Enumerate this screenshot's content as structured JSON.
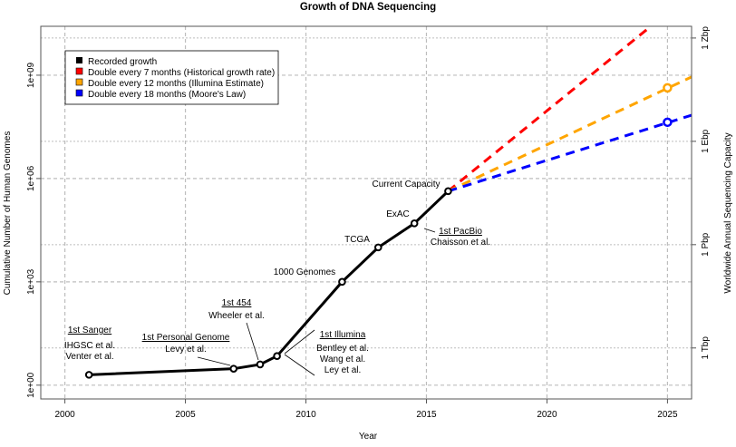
{
  "chart_data": {
    "type": "line",
    "title": "Growth of DNA Sequencing",
    "xlabel": "Year",
    "ylabel": "Cumulative Number of Human Genomes",
    "ylabel_right": "Worldwide Annual Sequencing Capacity",
    "xlim": [
      1999,
      2026
    ],
    "ylim_log10": [
      -0.4,
      10.42
    ],
    "yscale": "log",
    "grid": true,
    "x_ticks": [
      2000,
      2005,
      2010,
      2015,
      2020,
      2025
    ],
    "x_tick_labels": [
      "2000",
      "2005",
      "2010",
      "2015",
      "2020",
      "2025"
    ],
    "y_ticks": [
      1,
      1000,
      1000000,
      1000000000
    ],
    "y_tick_labels": [
      "1e+00",
      "1e+03",
      "1e+06",
      "1e+09"
    ],
    "y_right_ticks_log10": [
      1.08,
      4.08,
      7.08,
      10.08
    ],
    "y_right_tick_labels": [
      "1 Tbp",
      "1 Pbp",
      "1 Ebp",
      "1 Zbp"
    ],
    "legend_position": "top-left",
    "legend": [
      {
        "label": "Recorded growth",
        "color": "#000000"
      },
      {
        "label": "Double every 7 months (Historical growth rate)",
        "color": "#ff0000"
      },
      {
        "label": "Double every 12 months (Illumina Estimate)",
        "color": "#ffa500"
      },
      {
        "label": "Double every 18 months (Moore's Law)",
        "color": "#0000ff"
      }
    ],
    "series": [
      {
        "name": "Recorded growth",
        "color": "#000000",
        "x": [
          2001,
          2007,
          2008.1,
          2008.8,
          2011.5,
          2013,
          2014.5,
          2015.9
        ],
        "y": [
          2,
          3,
          4,
          7,
          1000,
          10000,
          50000,
          430000
        ]
      },
      {
        "name": "Double every 7 months",
        "color": "#ff0000",
        "x": [
          2015.9,
          2024.3
        ],
        "y": [
          430000,
          26000000000
        ],
        "markers_x": []
      },
      {
        "name": "Double every 12 months",
        "color": "#ffa500",
        "x": [
          2015.9,
          2026
        ],
        "y": [
          430000,
          890000000
        ],
        "marker": {
          "x": 2025,
          "y": 430000000
        }
      },
      {
        "name": "Double every 18 months",
        "color": "#0000ff",
        "x": [
          2015.9,
          2026
        ],
        "y": [
          430000,
          69000000
        ],
        "marker": {
          "x": 2025,
          "y": 43000000
        }
      }
    ],
    "annotations": {
      "sanger_title": "1st Sanger",
      "sanger_1": "IHGSC et al.",
      "sanger_2": "Venter et al.",
      "personal_title": "1st Personal Genome",
      "personal_1": "Levy et al.",
      "f454_title": "1st 454",
      "f454_1": "Wheeler et al.",
      "illumina_title": "1st Illumina",
      "illumina_1": "Bentley et al.",
      "illumina_2": "Wang et al.",
      "illumina_3": "Ley et al.",
      "g1000": "1000 Genomes",
      "tcga": "TCGA",
      "exac": "ExAC",
      "pacbio_title": "1st PacBio",
      "pacbio_1": "Chaisson et al.",
      "current": "Current Capacity"
    }
  }
}
